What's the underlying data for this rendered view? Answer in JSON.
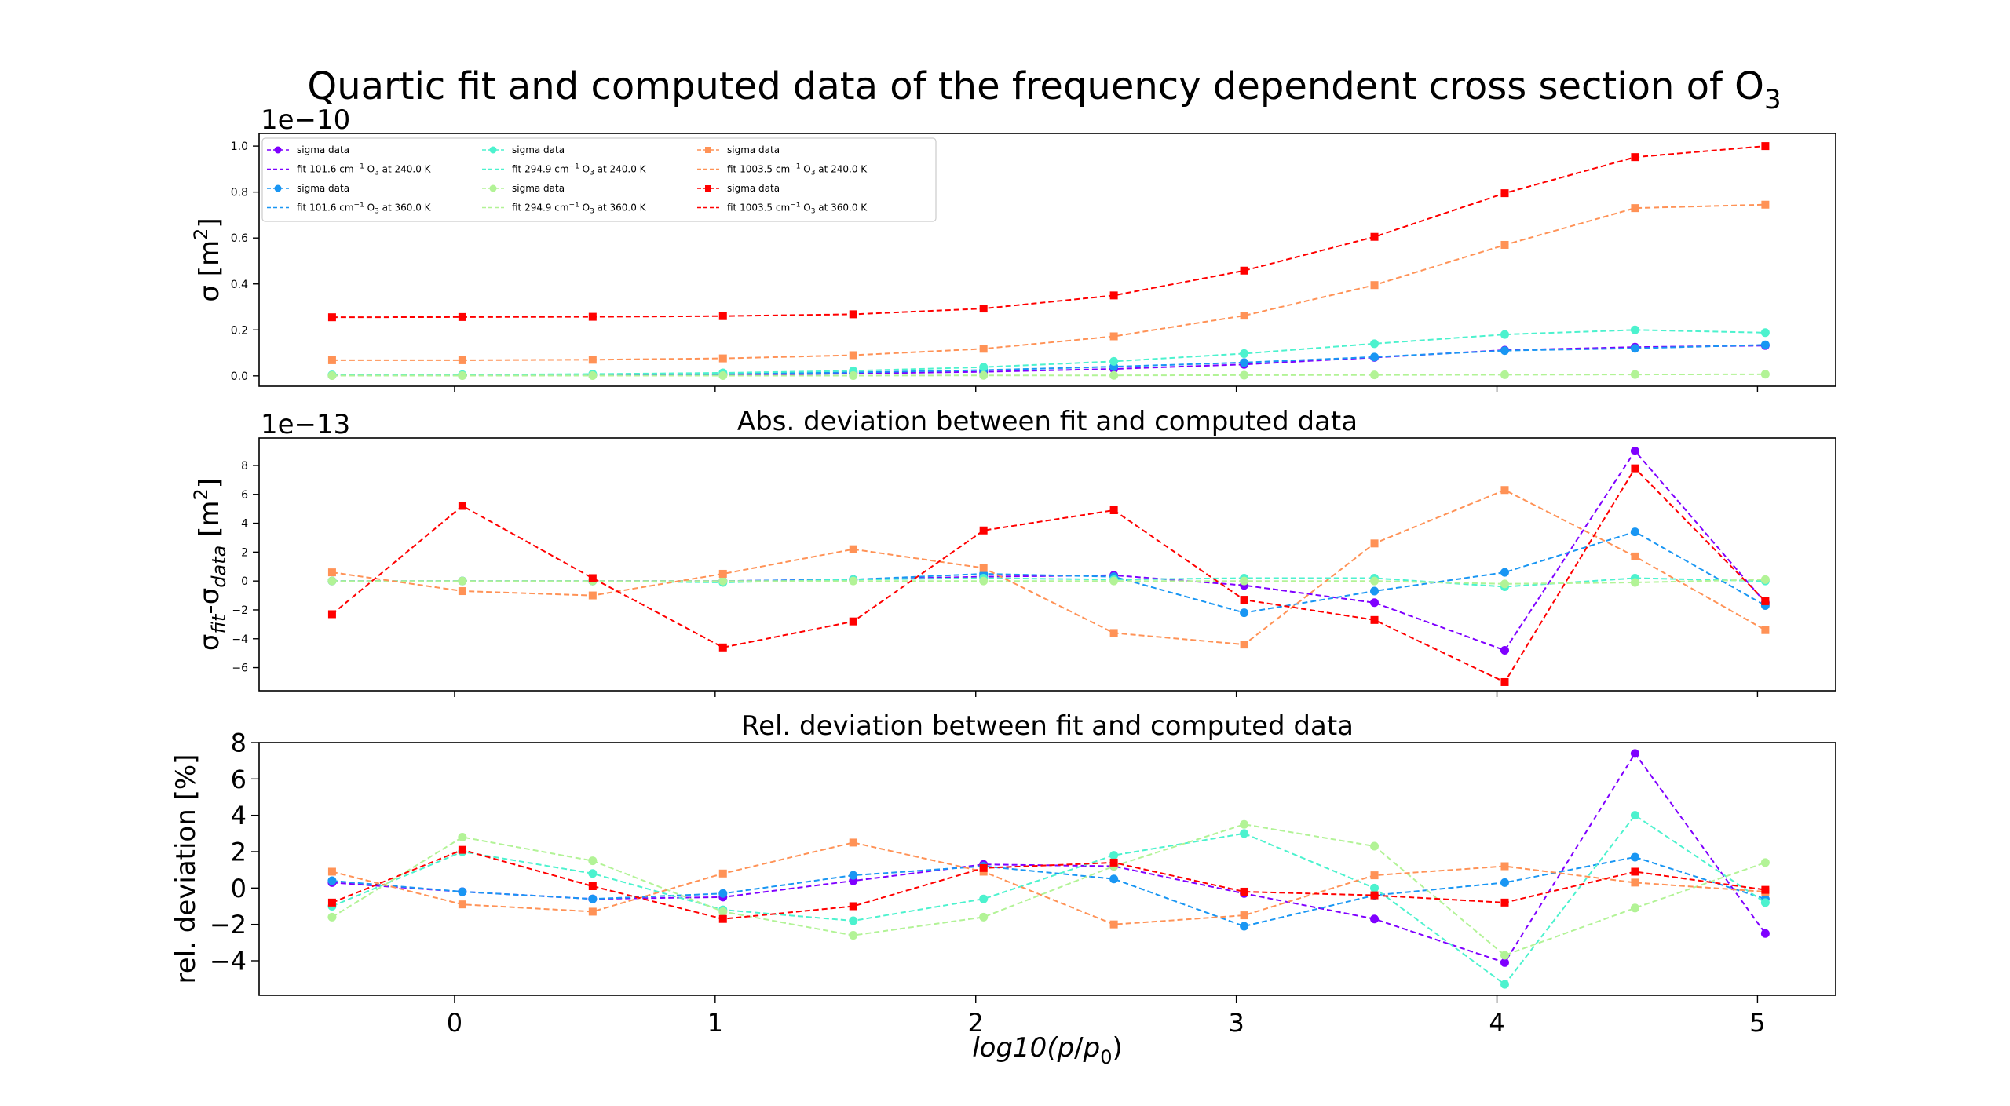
{
  "title": {
    "main": "Quartic fit and computed data of the frequency dependent cross section of O",
    "sub": "3"
  },
  "legend_labels": {
    "data_label": "sigma data",
    "fit_prefix": "fit ",
    "cm_unit": " cm",
    "cm_exp": "−1",
    "species": " O",
    "species_sub": "3",
    "at": " at "
  },
  "chart_data": [
    {
      "type": "line",
      "title": "",
      "ylabel": {
        "base": "σ [m",
        "exp": "2",
        "end": "]"
      },
      "offset_text": "1e−10",
      "xlim": [
        -0.75,
        5.3
      ],
      "ylim": [
        -0.045,
        1.055
      ],
      "yticks": [
        0.0,
        0.2,
        0.4,
        0.6,
        0.8,
        1.0
      ],
      "ytick_labels": [
        "0.0",
        "0.2",
        "0.4",
        "0.6",
        "0.8",
        "1.0"
      ],
      "legend_position": "upper-left",
      "x": [
        -0.47,
        0.03,
        0.53,
        1.03,
        1.53,
        2.03,
        2.53,
        3.03,
        3.53,
        4.03,
        4.53,
        5.03
      ],
      "series": [
        {
          "freq": "101.6",
          "temp": "240.0 K",
          "color": "#7f00ff",
          "marker": "circle",
          "values": [
            0.002,
            0.002,
            0.003,
            0.005,
            0.01,
            0.018,
            0.03,
            0.05,
            0.08,
            0.112,
            0.125,
            0.132
          ]
        },
        {
          "freq": "101.6",
          "temp": "360.0 K",
          "color": "#1996f3",
          "marker": "circle",
          "values": [
            0.003,
            0.004,
            0.005,
            0.008,
            0.015,
            0.025,
            0.04,
            0.058,
            0.082,
            0.11,
            0.12,
            0.135
          ]
        },
        {
          "freq": "294.9",
          "temp": "240.0 K",
          "color": "#4cf2ce",
          "marker": "circle",
          "values": [
            0.004,
            0.005,
            0.008,
            0.013,
            0.022,
            0.038,
            0.063,
            0.097,
            0.14,
            0.18,
            0.2,
            0.188
          ]
        },
        {
          "freq": "294.9",
          "temp": "360.0 K",
          "color": "#b2f396",
          "marker": "circle",
          "values": [
            0.001,
            0.001,
            0.001,
            0.001,
            0.001,
            0.002,
            0.002,
            0.003,
            0.004,
            0.005,
            0.006,
            0.007
          ]
        },
        {
          "freq": "1003.5",
          "temp": "240.0 K",
          "color": "#ff9256",
          "marker": "square",
          "values": [
            0.068,
            0.068,
            0.07,
            0.076,
            0.09,
            0.118,
            0.172,
            0.262,
            0.395,
            0.57,
            0.73,
            0.745
          ]
        },
        {
          "freq": "1003.5",
          "temp": "360.0 K",
          "color": "#ff0000",
          "marker": "square",
          "values": [
            0.255,
            0.256,
            0.257,
            0.26,
            0.268,
            0.293,
            0.35,
            0.458,
            0.605,
            0.795,
            0.952,
            1.0
          ]
        }
      ]
    },
    {
      "type": "line",
      "title": "Abs. deviation between fit and computed data",
      "ylabel": {
        "base": "σ",
        "sub1": "fit",
        "mid": "-σ",
        "sub2": "data",
        "end": " [m",
        "exp": "2",
        "close": "]"
      },
      "offset_text": "1e−13",
      "xlim": [
        -0.75,
        5.3
      ],
      "ylim": [
        -7.6,
        9.9
      ],
      "yticks": [
        -6,
        -4,
        -2,
        0,
        2,
        4,
        6,
        8
      ],
      "ytick_labels": [
        "−6",
        "−4",
        "−2",
        "0",
        "2",
        "4",
        "6",
        "8"
      ],
      "x": [
        -0.47,
        0.03,
        0.53,
        1.03,
        1.53,
        2.03,
        2.53,
        3.03,
        3.53,
        4.03,
        4.53,
        5.03
      ],
      "series": [
        {
          "color": "#7f00ff",
          "marker": "circle",
          "values": [
            0.0,
            0.0,
            0.0,
            0.0,
            0.1,
            0.3,
            0.4,
            -0.3,
            -1.5,
            -4.8,
            9.0,
            -1.5
          ]
        },
        {
          "color": "#1996f3",
          "marker": "circle",
          "values": [
            0.0,
            0.0,
            0.0,
            0.0,
            0.1,
            0.5,
            0.3,
            -2.2,
            -0.7,
            0.6,
            3.4,
            -1.7
          ]
        },
        {
          "color": "#4cf2ce",
          "marker": "circle",
          "values": [
            0.0,
            0.0,
            0.0,
            -0.1,
            0.1,
            0.2,
            0.1,
            0.2,
            0.2,
            -0.4,
            0.2,
            0.0
          ]
        },
        {
          "color": "#b2f396",
          "marker": "circle",
          "values": [
            0.0,
            0.0,
            0.0,
            0.0,
            0.0,
            0.0,
            0.0,
            0.0,
            0.0,
            -0.2,
            -0.1,
            0.1
          ]
        },
        {
          "color": "#ff9256",
          "marker": "square",
          "values": [
            0.6,
            -0.7,
            -1.0,
            0.5,
            2.2,
            0.9,
            -3.6,
            -4.4,
            2.6,
            6.3,
            1.7,
            -3.4
          ]
        },
        {
          "color": "#ff0000",
          "marker": "square",
          "values": [
            -2.3,
            5.2,
            0.2,
            -4.6,
            -2.8,
            3.5,
            4.9,
            -1.3,
            -2.7,
            -7.0,
            7.8,
            -1.4
          ]
        }
      ]
    },
    {
      "type": "line",
      "title": "Rel. deviation between fit and computed data",
      "ylabel": {
        "base": "rel. deviation [%]"
      },
      "xlabel": {
        "base": "log10(",
        "p": "p",
        "slash": "/",
        "p0": "p",
        "sub0": "0",
        "close": ")"
      },
      "xlim": [
        -0.75,
        5.3
      ],
      "ylim": [
        -5.9,
        8.0
      ],
      "yticks": [
        -4,
        -2,
        0,
        2,
        4,
        6,
        8
      ],
      "ytick_labels": [
        "−4",
        "−2",
        "0",
        "2",
        "4",
        "6",
        "8"
      ],
      "xticks": [
        0,
        1,
        2,
        3,
        4,
        5
      ],
      "xtick_labels": [
        "0",
        "1",
        "2",
        "3",
        "4",
        "5"
      ],
      "x": [
        -0.47,
        0.03,
        0.53,
        1.03,
        1.53,
        2.03,
        2.53,
        3.03,
        3.53,
        4.03,
        4.53,
        5.03
      ],
      "series": [
        {
          "color": "#7f00ff",
          "marker": "circle",
          "values": [
            0.3,
            -0.2,
            -0.6,
            -0.5,
            0.4,
            1.3,
            1.2,
            -0.3,
            -1.7,
            -4.1,
            7.4,
            -2.5
          ]
        },
        {
          "color": "#1996f3",
          "marker": "circle",
          "values": [
            0.4,
            -0.2,
            -0.6,
            -0.3,
            0.7,
            1.2,
            0.5,
            -2.1,
            -0.4,
            0.3,
            1.7,
            -0.6
          ]
        },
        {
          "color": "#4cf2ce",
          "marker": "circle",
          "values": [
            -1.0,
            2.0,
            0.8,
            -1.2,
            -1.8,
            -0.6,
            1.8,
            3.0,
            0.0,
            -5.3,
            4.0,
            -0.8
          ]
        },
        {
          "color": "#b2f396",
          "marker": "circle",
          "values": [
            -1.6,
            2.8,
            1.5,
            -1.3,
            -2.6,
            -1.6,
            1.2,
            3.5,
            2.3,
            -3.7,
            -1.1,
            1.4
          ]
        },
        {
          "color": "#ff9256",
          "marker": "square",
          "values": [
            0.9,
            -0.9,
            -1.3,
            0.8,
            2.5,
            0.9,
            -2.0,
            -1.5,
            0.7,
            1.2,
            0.3,
            -0.2
          ]
        },
        {
          "color": "#ff0000",
          "marker": "square",
          "values": [
            -0.8,
            2.1,
            0.1,
            -1.7,
            -1.0,
            1.1,
            1.4,
            -0.2,
            -0.4,
            -0.8,
            0.9,
            -0.1
          ]
        }
      ]
    }
  ]
}
